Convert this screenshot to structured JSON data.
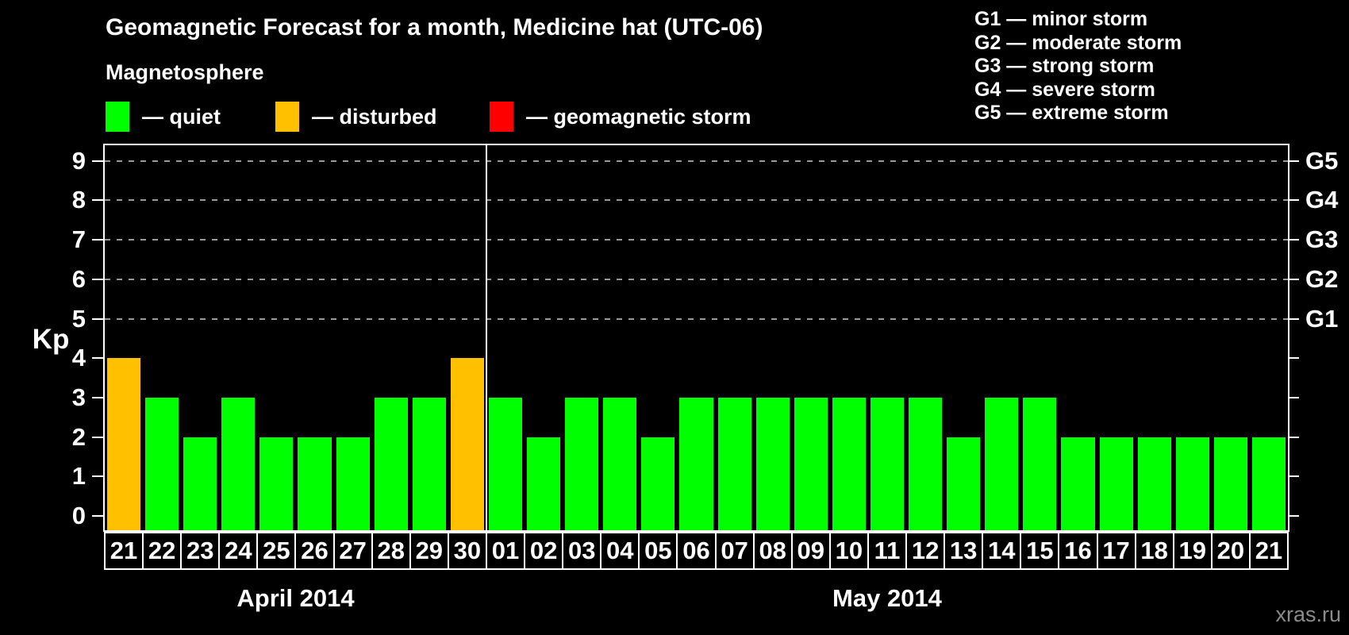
{
  "title": "Geomagnetic Forecast for a month, Medicine hat (UTC-06)",
  "subtitle": "Magnetosphere",
  "magnetosphere_legend": [
    {
      "label": "— quiet",
      "status": "quiet",
      "color": "#00ff00"
    },
    {
      "label": "— disturbed",
      "status": "disturbed",
      "color": "#ffc000"
    },
    {
      "label": "— geomagnetic storm",
      "status": "storm",
      "color": "#ff0000"
    }
  ],
  "storm_scale_legend": [
    "G1 — minor storm",
    "G2 — moderate storm",
    "G3 — strong storm",
    "G4 — severe storm",
    "G5 — extreme storm"
  ],
  "watermark": "xras.ru",
  "chart_data": {
    "type": "bar",
    "title": "Geomagnetic Forecast for a month, Medicine hat (UTC-06)",
    "ylabel": "Kp",
    "ylim": [
      0,
      9
    ],
    "yticks": [
      0,
      1,
      2,
      3,
      4,
      5,
      6,
      7,
      8,
      9
    ],
    "grid_kp": [
      5,
      6,
      7,
      8,
      9
    ],
    "grid_style": "dashed",
    "right_scale": [
      {
        "kp": 5,
        "label": "G1"
      },
      {
        "kp": 6,
        "label": "G2"
      },
      {
        "kp": 7,
        "label": "G3"
      },
      {
        "kp": 8,
        "label": "G4"
      },
      {
        "kp": 9,
        "label": "G5"
      }
    ],
    "colors": {
      "quiet": "#00ff00",
      "disturbed": "#ffc000",
      "storm": "#ff0000"
    },
    "months": [
      {
        "label": "April 2014",
        "days": [
          "21",
          "22",
          "23",
          "24",
          "25",
          "26",
          "27",
          "28",
          "29",
          "30"
        ],
        "kp": [
          4,
          3,
          2,
          3,
          2,
          2,
          2,
          3,
          3,
          4
        ],
        "status": [
          "disturbed",
          "quiet",
          "quiet",
          "quiet",
          "quiet",
          "quiet",
          "quiet",
          "quiet",
          "quiet",
          "disturbed"
        ]
      },
      {
        "label": "May 2014",
        "days": [
          "01",
          "02",
          "03",
          "04",
          "05",
          "06",
          "07",
          "08",
          "09",
          "10",
          "11",
          "12",
          "13",
          "14",
          "15",
          "16",
          "17",
          "18",
          "19",
          "20",
          "21"
        ],
        "kp": [
          3,
          2,
          3,
          3,
          2,
          3,
          3,
          3,
          3,
          3,
          3,
          3,
          2,
          3,
          3,
          2,
          2,
          2,
          2,
          2,
          2
        ],
        "status": [
          "quiet",
          "quiet",
          "quiet",
          "quiet",
          "quiet",
          "quiet",
          "quiet",
          "quiet",
          "quiet",
          "quiet",
          "quiet",
          "quiet",
          "quiet",
          "quiet",
          "quiet",
          "quiet",
          "quiet",
          "quiet",
          "quiet",
          "quiet",
          "quiet"
        ]
      }
    ]
  }
}
